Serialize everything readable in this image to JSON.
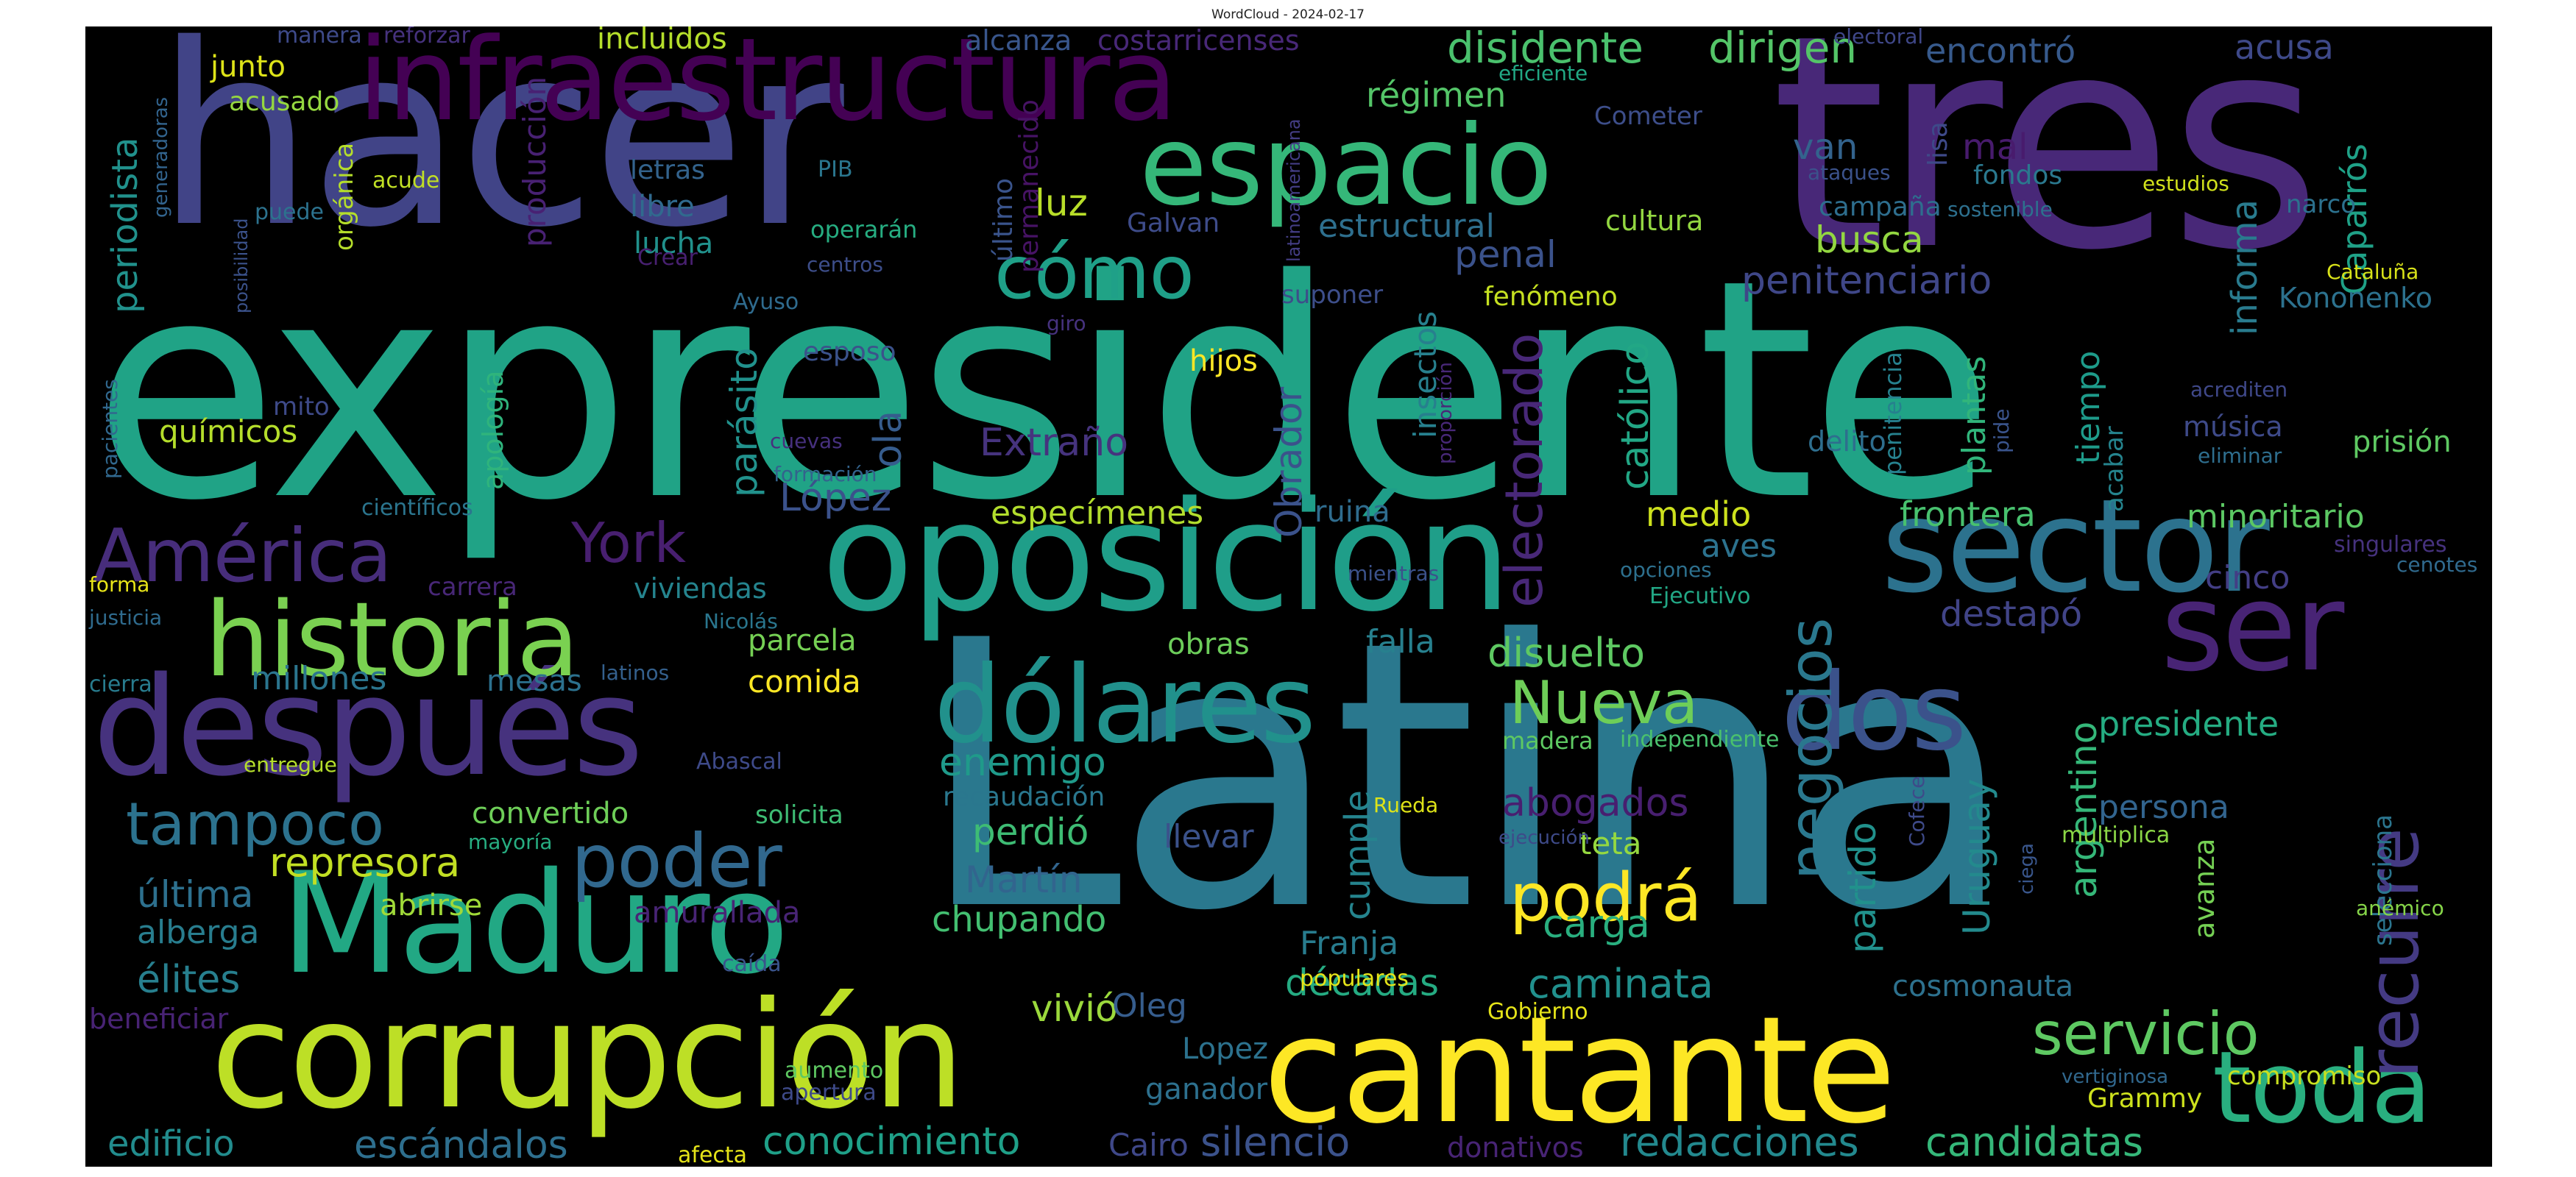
{
  "title": "WordCloud - 2024-02-17",
  "words": [
    {
      "text": "expresidente",
      "color": "#20a386"
    },
    {
      "text": "Latina",
      "color": "#2a788e"
    },
    {
      "text": "tres",
      "color": "#482878"
    },
    {
      "text": "hacer",
      "color": "#414487"
    },
    {
      "text": "oposición",
      "color": "#1f9e89"
    },
    {
      "text": "corrupción",
      "color": "#bddf26"
    },
    {
      "text": "cantante",
      "color": "#fde725"
    },
    {
      "text": "infraestructura",
      "color": "#440154"
    },
    {
      "text": "Maduro",
      "color": "#22a884"
    },
    {
      "text": "después",
      "color": "#46327e"
    },
    {
      "text": "espacio",
      "color": "#35b779"
    },
    {
      "text": "sector",
      "color": "#2c728e"
    },
    {
      "text": "ser",
      "color": "#482475"
    },
    {
      "text": "historia",
      "color": "#7ad151"
    },
    {
      "text": "dólares",
      "color": "#21918c"
    },
    {
      "text": "dos",
      "color": "#3b528b"
    },
    {
      "text": "toda",
      "color": "#29af7f"
    },
    {
      "text": "cómo",
      "color": "#1fa088"
    },
    {
      "text": "poder",
      "color": "#31688e"
    },
    {
      "text": "América",
      "color": "#472d7b"
    },
    {
      "text": "recurre",
      "color": "#443a83"
    },
    {
      "text": "York",
      "color": "#481f70"
    },
    {
      "text": "Nueva",
      "color": "#6ece58"
    },
    {
      "text": "podrá",
      "color": "#fde725"
    },
    {
      "text": "servicio",
      "color": "#5ec962"
    },
    {
      "text": "negocios",
      "color": "#2a788e"
    },
    {
      "text": "tampoco",
      "color": "#2c728e"
    },
    {
      "text": "disidente",
      "color": "#4ac16d"
    },
    {
      "text": "dirigen",
      "color": "#54c568"
    },
    {
      "text": "encontró",
      "color": "#375a8c"
    },
    {
      "text": "acusa",
      "color": "#3e4989"
    },
    {
      "text": "Caparrós",
      "color": "#1fa187"
    },
    {
      "text": "régimen",
      "color": "#54c568"
    },
    {
      "text": "van",
      "color": "#33638d"
    },
    {
      "text": "mal",
      "color": "#481b6d"
    },
    {
      "text": "periodista",
      "color": "#21918c"
    },
    {
      "text": "junto",
      "color": "#dde318"
    },
    {
      "text": "acusado",
      "color": "#95d840"
    },
    {
      "text": "luz",
      "color": "#b8de29"
    },
    {
      "text": "penal",
      "color": "#3b528b"
    },
    {
      "text": "busca",
      "color": "#93d741"
    },
    {
      "text": "informa",
      "color": "#297b8e"
    },
    {
      "text": "penitenciario",
      "color": "#3f4788"
    },
    {
      "text": "católico",
      "color": "#22a785"
    },
    {
      "text": "Kononenko",
      "color": "#2c718e"
    },
    {
      "text": "Extraño",
      "color": "#46337e"
    },
    {
      "text": "López",
      "color": "#3b528b"
    },
    {
      "text": "químicos",
      "color": "#b5de2b"
    },
    {
      "text": "mito",
      "color": "#3e4a89"
    },
    {
      "text": "parásito",
      "color": "#21918c"
    },
    {
      "text": "apología",
      "color": "#2fb47c"
    },
    {
      "text": "ola",
      "color": "#365c8d"
    },
    {
      "text": "Obrador",
      "color": "#3b528b"
    },
    {
      "text": "insectos",
      "color": "#27808e"
    },
    {
      "text": "electorado",
      "color": "#482878"
    },
    {
      "text": "especímenes",
      "color": "#b2dd2d"
    },
    {
      "text": "ruina",
      "color": "#2f6c8e"
    },
    {
      "text": "medio",
      "color": "#cde11d"
    },
    {
      "text": "delito",
      "color": "#2e6e8e"
    },
    {
      "text": "plantas",
      "color": "#31b57b"
    },
    {
      "text": "tiempo",
      "color": "#1e9b8a"
    },
    {
      "text": "frontera",
      "color": "#48c16e"
    },
    {
      "text": "música",
      "color": "#3e4a89"
    },
    {
      "text": "prisión",
      "color": "#5ec962"
    },
    {
      "text": "minoritario",
      "color": "#5cc863"
    },
    {
      "text": "cinco",
      "color": "#433e85"
    },
    {
      "text": "aves",
      "color": "#2c728e"
    },
    {
      "text": "destapó",
      "color": "#414487"
    },
    {
      "text": "presidente",
      "color": "#25ac82"
    },
    {
      "text": "millones",
      "color": "#2b758e"
    },
    {
      "text": "mesas",
      "color": "#2c718e"
    },
    {
      "text": "viviendas",
      "color": "#25848e"
    },
    {
      "text": "parcela",
      "color": "#75d054"
    },
    {
      "text": "comida",
      "color": "#fde725"
    },
    {
      "text": "obras",
      "color": "#6ccd5a"
    },
    {
      "text": "falla",
      "color": "#27808e"
    },
    {
      "text": "disuelto",
      "color": "#5ec962"
    },
    {
      "text": "enemigo",
      "color": "#1f9a8a"
    },
    {
      "text": "cumple",
      "color": "#25848e"
    },
    {
      "text": "abogados",
      "color": "#481f70"
    },
    {
      "text": "teta",
      "color": "#95d840"
    },
    {
      "text": "partido",
      "color": "#21918c"
    },
    {
      "text": "Uruguay",
      "color": "#238a8d"
    },
    {
      "text": "argentino",
      "color": "#35b779"
    },
    {
      "text": "persona",
      "color": "#32648e"
    },
    {
      "text": "avanza",
      "color": "#75d054"
    },
    {
      "text": "selecciona",
      "color": "#2b758e"
    },
    {
      "text": "convertido",
      "color": "#6ece58"
    },
    {
      "text": "represora",
      "color": "#c2df23"
    },
    {
      "text": "última",
      "color": "#2d708e"
    },
    {
      "text": "alberga",
      "color": "#287d8e"
    },
    {
      "text": "abrirse",
      "color": "#a0da39"
    },
    {
      "text": "amurallada",
      "color": "#482475"
    },
    {
      "text": "élites",
      "color": "#277f8e"
    },
    {
      "text": "perdió",
      "color": "#3ebc74"
    },
    {
      "text": "Martín",
      "color": "#32658e"
    },
    {
      "text": "chupando",
      "color": "#43bf71"
    },
    {
      "text": "carga",
      "color": "#29af7f"
    },
    {
      "text": "Franja",
      "color": "#287c8e"
    },
    {
      "text": "décadas",
      "color": "#25ab82"
    },
    {
      "text": "caminata",
      "color": "#21908d"
    },
    {
      "text": "cosmonauta",
      "color": "#2d718e"
    },
    {
      "text": "vivió",
      "color": "#9bd93c"
    },
    {
      "text": "Oleg",
      "color": "#365d8d"
    },
    {
      "text": "Lopez",
      "color": "#2c728e"
    },
    {
      "text": "ganador",
      "color": "#2d708e"
    },
    {
      "text": "edificio",
      "color": "#228c8d"
    },
    {
      "text": "escándalos",
      "color": "#2e6f8e"
    },
    {
      "text": "conocimiento",
      "color": "#1fa088"
    },
    {
      "text": "Cairo",
      "color": "#3f4889"
    },
    {
      "text": "silencio",
      "color": "#3b528b"
    },
    {
      "text": "donativos",
      "color": "#482475"
    },
    {
      "text": "redacciones",
      "color": "#23898e"
    },
    {
      "text": "candidatas",
      "color": "#35b779"
    },
    {
      "text": "Grammy",
      "color": "#cde11d"
    },
    {
      "text": "compromiso",
      "color": "#c8e020"
    },
    {
      "text": "vertiginosa",
      "color": "#31688e"
    },
    {
      "text": "anémico",
      "color": "#86d549"
    },
    {
      "text": "incluidos",
      "color": "#b5de2b"
    },
    {
      "text": "alcanza",
      "color": "#39568c"
    },
    {
      "text": "costarricenses",
      "color": "#482878"
    },
    {
      "text": "manera",
      "color": "#3e4a89"
    },
    {
      "text": "reforzar",
      "color": "#46327e"
    },
    {
      "text": "electoral",
      "color": "#3f4788"
    },
    {
      "text": "eficiente",
      "color": "#22a884"
    },
    {
      "text": "Cometer",
      "color": "#3d4e8a"
    },
    {
      "text": "generadoras",
      "color": "#32648e"
    },
    {
      "text": "producción",
      "color": "#482173"
    },
    {
      "text": "orgánica",
      "color": "#b5de2b"
    },
    {
      "text": "letras",
      "color": "#33638d"
    },
    {
      "text": "libre",
      "color": "#306a8e"
    },
    {
      "text": "lucha",
      "color": "#21918c"
    },
    {
      "text": "Crear",
      "color": "#482071"
    },
    {
      "text": "PIB",
      "color": "#2a768e"
    },
    {
      "text": "operarán",
      "color": "#26ad81"
    },
    {
      "text": "centros",
      "color": "#3d4e8a"
    },
    {
      "text": "permanecido",
      "color": "#471365"
    },
    {
      "text": "último",
      "color": "#3a548c"
    },
    {
      "text": "Galvan",
      "color": "#3e4c8a"
    },
    {
      "text": "estructural",
      "color": "#2e6f8e"
    },
    {
      "text": "cultura",
      "color": "#93d741"
    },
    {
      "text": "campaña",
      "color": "#2e6e8e"
    },
    {
      "text": "fondos",
      "color": "#2a788e"
    },
    {
      "text": "ataques",
      "color": "#3b528b"
    },
    {
      "text": "lisa",
      "color": "#3e4a89"
    },
    {
      "text": "sostenible",
      "color": "#2d708e"
    },
    {
      "text": "estudios",
      "color": "#d0e11c"
    },
    {
      "text": "narco",
      "color": "#2c718e"
    },
    {
      "text": "latinoamericana",
      "color": "#433d84"
    },
    {
      "text": "Cataluña",
      "color": "#d8e219"
    },
    {
      "text": "posibilidad",
      "color": "#3b528b"
    },
    {
      "text": "puede",
      "color": "#2c728e"
    },
    {
      "text": "acude",
      "color": "#c0df25"
    },
    {
      "text": "suponer",
      "color": "#3d4e8a"
    },
    {
      "text": "fenómeno",
      "color": "#c5e021"
    },
    {
      "text": "Ayuso",
      "color": "#2f6b8e"
    },
    {
      "text": "giro",
      "color": "#46327e"
    },
    {
      "text": "hijos",
      "color": "#fde725"
    },
    {
      "text": "esposo",
      "color": "#3b528b"
    },
    {
      "text": "pacientes",
      "color": "#31688e"
    },
    {
      "text": "cuevas",
      "color": "#46307e"
    },
    {
      "text": "formación",
      "color": "#33638d"
    },
    {
      "text": "proporción",
      "color": "#482878"
    },
    {
      "text": "penitencia",
      "color": "#26818e"
    },
    {
      "text": "pide",
      "color": "#3a548c"
    },
    {
      "text": "acabar",
      "color": "#25848e"
    },
    {
      "text": "acrediten",
      "color": "#3f4889"
    },
    {
      "text": "eliminar",
      "color": "#2e6e8e"
    },
    {
      "text": "científicos",
      "color": "#2b758e"
    },
    {
      "text": "singulares",
      "color": "#46327e"
    },
    {
      "text": "cenotes",
      "color": "#306a8e"
    },
    {
      "text": "forma",
      "color": "#e7e419"
    },
    {
      "text": "carrera",
      "color": "#482777"
    },
    {
      "text": "mientras",
      "color": "#3b528b"
    },
    {
      "text": "opciones",
      "color": "#2d708e"
    },
    {
      "text": "Ejecutivo",
      "color": "#22a785"
    },
    {
      "text": "justicia",
      "color": "#2f6b8e"
    },
    {
      "text": "Nicolás",
      "color": "#2a768e"
    },
    {
      "text": "latinos",
      "color": "#34608d"
    },
    {
      "text": "cierra",
      "color": "#287c8e"
    },
    {
      "text": "madera",
      "color": "#5ec962"
    },
    {
      "text": "independiente",
      "color": "#4ac16d"
    },
    {
      "text": "entregue",
      "color": "#b5de2b"
    },
    {
      "text": "Abascal",
      "color": "#3e4a89"
    },
    {
      "text": "solicita",
      "color": "#3ebc74"
    },
    {
      "text": "recaudación",
      "color": "#2a778e"
    },
    {
      "text": "llevar",
      "color": "#3b528b"
    },
    {
      "text": "Rueda",
      "color": "#dde318"
    },
    {
      "text": "ejecución",
      "color": "#3e4a89"
    },
    {
      "text": "Cofece",
      "color": "#3e4a89"
    },
    {
      "text": "ciega",
      "color": "#39568c"
    },
    {
      "text": "multiplica",
      "color": "#8bd646"
    },
    {
      "text": "mayoría",
      "color": "#27ad81"
    },
    {
      "text": "caída",
      "color": "#3a548c"
    },
    {
      "text": "beneficiar",
      "color": "#482374"
    },
    {
      "text": "populares",
      "color": "#e5e419"
    },
    {
      "text": "Gobierno",
      "color": "#e5e419"
    },
    {
      "text": "aumento",
      "color": "#5ec962"
    },
    {
      "text": "apertura",
      "color": "#3e4a89"
    },
    {
      "text": "afecta",
      "color": "#e5e419"
    }
  ]
}
